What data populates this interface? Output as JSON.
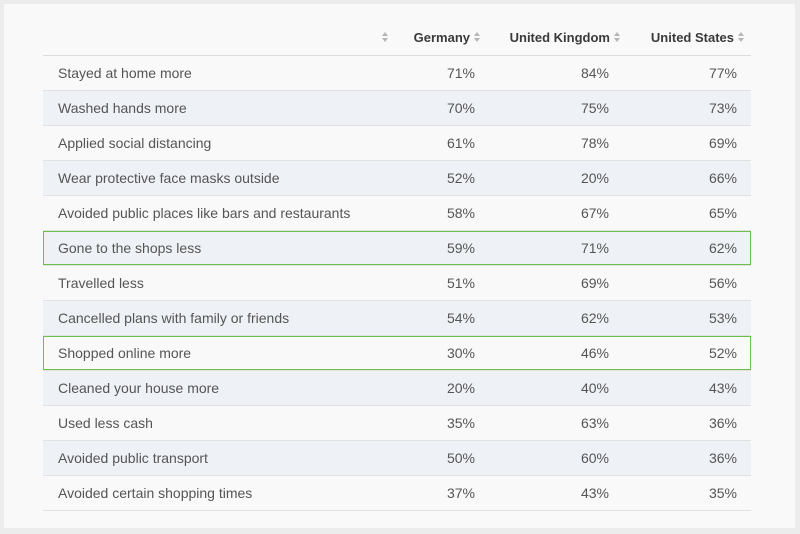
{
  "columns": [
    "",
    "Germany",
    "United Kingdom",
    "United States"
  ],
  "rows": [
    {
      "label": "Stayed at home more",
      "values": [
        "71%",
        "84%",
        "77%"
      ],
      "highlighted": false
    },
    {
      "label": "Washed hands more",
      "values": [
        "70%",
        "75%",
        "73%"
      ],
      "highlighted": false
    },
    {
      "label": "Applied social distancing",
      "values": [
        "61%",
        "78%",
        "69%"
      ],
      "highlighted": false
    },
    {
      "label": "Wear protective face masks outside",
      "values": [
        "52%",
        "20%",
        "66%"
      ],
      "highlighted": false
    },
    {
      "label": "Avoided public places like bars and restaurants",
      "values": [
        "58%",
        "67%",
        "65%"
      ],
      "highlighted": false
    },
    {
      "label": "Gone to the shops less",
      "values": [
        "59%",
        "71%",
        "62%"
      ],
      "highlighted": true
    },
    {
      "label": "Travelled less",
      "values": [
        "51%",
        "69%",
        "56%"
      ],
      "highlighted": false
    },
    {
      "label": "Cancelled plans with family or friends",
      "values": [
        "54%",
        "62%",
        "53%"
      ],
      "highlighted": false
    },
    {
      "label": "Shopped online more",
      "values": [
        "30%",
        "46%",
        "52%"
      ],
      "highlighted": true
    },
    {
      "label": "Cleaned your house more",
      "values": [
        "20%",
        "40%",
        "43%"
      ],
      "highlighted": false
    },
    {
      "label": "Used less cash",
      "values": [
        "35%",
        "63%",
        "36%"
      ],
      "highlighted": false
    },
    {
      "label": "Avoided public transport",
      "values": [
        "50%",
        "60%",
        "36%"
      ],
      "highlighted": false
    },
    {
      "label": "Avoided certain shopping times",
      "values": [
        "37%",
        "43%",
        "35%"
      ],
      "highlighted": false
    }
  ],
  "colors": {
    "highlight_border": "#6bbf4a",
    "alt_row": "#eef1f5"
  },
  "icons": {
    "sort": "sort-arrows-icon"
  }
}
